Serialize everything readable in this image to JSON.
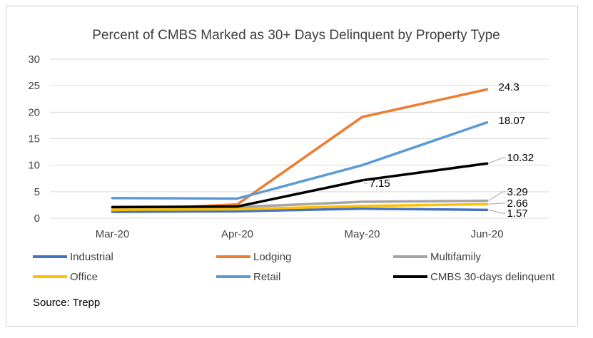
{
  "chart_data": {
    "type": "line",
    "title": "Percent of CMBS Marked as 30+ Days Delinquent by Property Type",
    "categories": [
      "Mar-20",
      "Apr-20",
      "May-20",
      "Jun-20"
    ],
    "ylim": [
      0,
      30
    ],
    "yticks": [
      0,
      5,
      10,
      15,
      20,
      25,
      30
    ],
    "grid": true,
    "legend_position": "bottom",
    "series": [
      {
        "name": "Industrial",
        "color": "#4472C4",
        "values": [
          1.2,
          1.3,
          1.8,
          1.57
        ]
      },
      {
        "name": "Lodging",
        "color": "#ED7D31",
        "values": [
          1.5,
          2.6,
          19.1,
          24.3
        ]
      },
      {
        "name": "Multifamily",
        "color": "#A5A5A5",
        "values": [
          1.7,
          2.1,
          3.1,
          3.29
        ]
      },
      {
        "name": "Office",
        "color": "#FFC000",
        "values": [
          1.6,
          1.7,
          2.3,
          2.66
        ]
      },
      {
        "name": "Retail",
        "color": "#5B9BD5",
        "values": [
          3.8,
          3.7,
          10.0,
          18.07
        ]
      },
      {
        "name": "CMBS 30-days delinquent",
        "color": "#000000",
        "values": [
          2.1,
          2.2,
          7.15,
          10.32
        ]
      }
    ],
    "data_labels": [
      {
        "series": "Lodging",
        "index": 3,
        "text": "24.3"
      },
      {
        "series": "Retail",
        "index": 3,
        "text": "18.07"
      },
      {
        "series": "CMBS 30-days delinquent",
        "index": 3,
        "text": "10.32"
      },
      {
        "series": "CMBS 30-days delinquent",
        "index": 2,
        "text": "7.15"
      },
      {
        "series": "Multifamily",
        "index": 3,
        "text": "3.29"
      },
      {
        "series": "Office",
        "index": 3,
        "text": "2.66"
      },
      {
        "series": "Industrial",
        "index": 3,
        "text": "1.57"
      }
    ],
    "source": "Source: Trepp"
  }
}
